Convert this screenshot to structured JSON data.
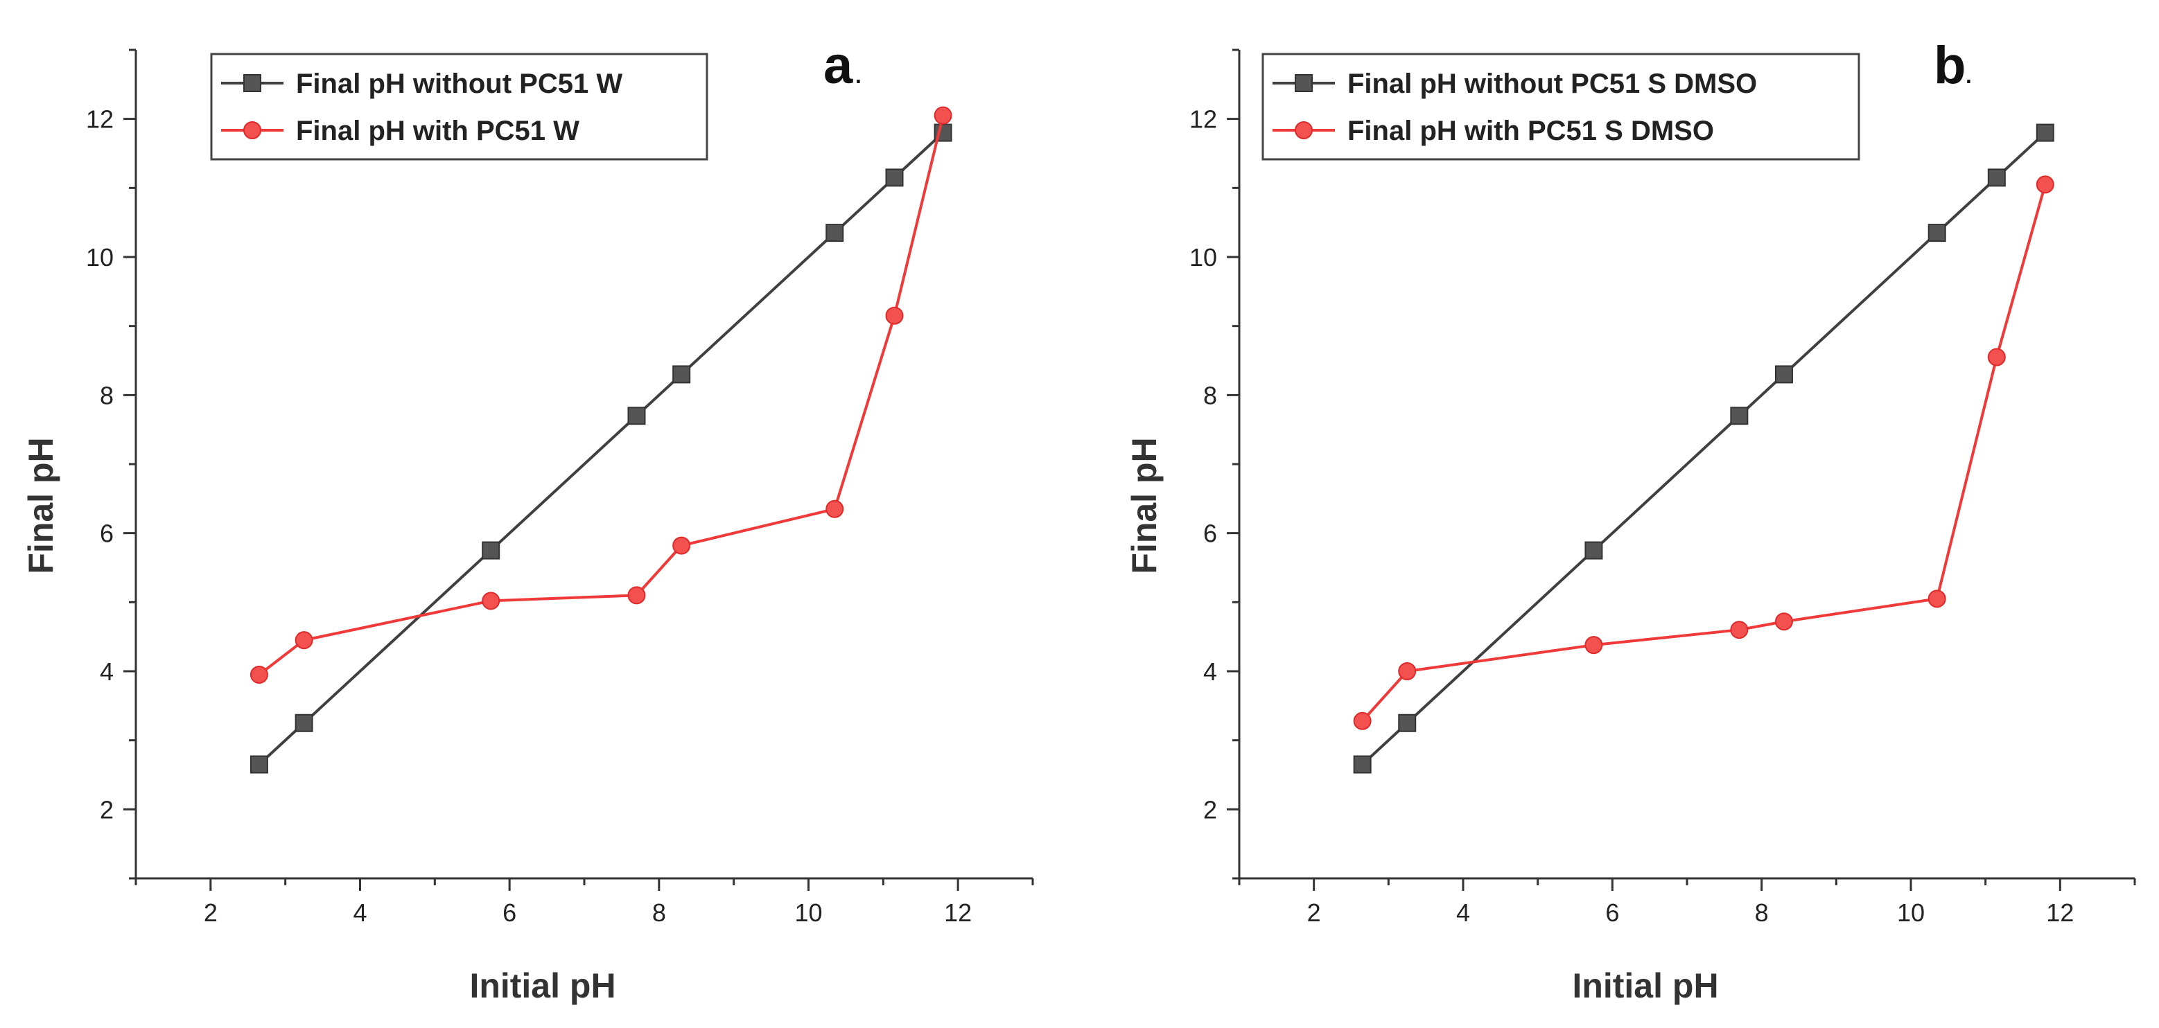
{
  "chart_data": [
    {
      "type": "line",
      "panel_label": "a",
      "panel_suffix": ".",
      "xlabel": "Initial pH",
      "ylabel": "Final pH",
      "xlim": [
        1,
        13
      ],
      "ylim": [
        1,
        13
      ],
      "xticks": [
        2,
        4,
        6,
        8,
        10,
        12
      ],
      "yticks": [
        2,
        4,
        6,
        8,
        10,
        12
      ],
      "grid": false,
      "legend_position": "top-left",
      "series": [
        {
          "name": "Final pH without PC51 W",
          "color": "#404040",
          "marker": "square",
          "x": [
            2.65,
            3.25,
            5.75,
            7.7,
            8.3,
            10.35,
            11.15,
            11.8
          ],
          "y": [
            2.65,
            3.25,
            5.75,
            7.7,
            8.3,
            10.35,
            11.15,
            11.8
          ]
        },
        {
          "name": "Final pH with PC51 W",
          "color": "#f03a3a",
          "marker": "circle",
          "x": [
            2.65,
            3.25,
            5.75,
            7.7,
            8.3,
            10.35,
            11.15,
            11.8
          ],
          "y": [
            3.95,
            4.45,
            5.02,
            5.1,
            5.82,
            6.35,
            9.15,
            12.05
          ]
        }
      ]
    },
    {
      "type": "line",
      "panel_label": "b",
      "panel_suffix": ".",
      "xlabel": "Initial pH",
      "ylabel": "Final pH",
      "xlim": [
        1,
        13
      ],
      "ylim": [
        1,
        13
      ],
      "xticks": [
        2,
        4,
        6,
        8,
        10,
        12
      ],
      "yticks": [
        2,
        4,
        6,
        8,
        10,
        12
      ],
      "grid": false,
      "legend_position": "top-left",
      "series": [
        {
          "name": "Final pH without PC51 S DMSO",
          "color": "#404040",
          "marker": "square",
          "x": [
            2.65,
            3.25,
            5.75,
            7.7,
            8.3,
            10.35,
            11.15,
            11.8
          ],
          "y": [
            2.65,
            3.25,
            5.75,
            7.7,
            8.3,
            10.35,
            11.15,
            11.8
          ]
        },
        {
          "name": "Final pH with PC51 S DMSO",
          "color": "#f03a3a",
          "marker": "circle",
          "x": [
            2.65,
            3.25,
            5.75,
            7.7,
            8.3,
            10.35,
            11.15,
            11.8
          ],
          "y": [
            3.28,
            4.0,
            4.38,
            4.6,
            4.72,
            5.05,
            8.55,
            11.05
          ]
        }
      ]
    }
  ]
}
